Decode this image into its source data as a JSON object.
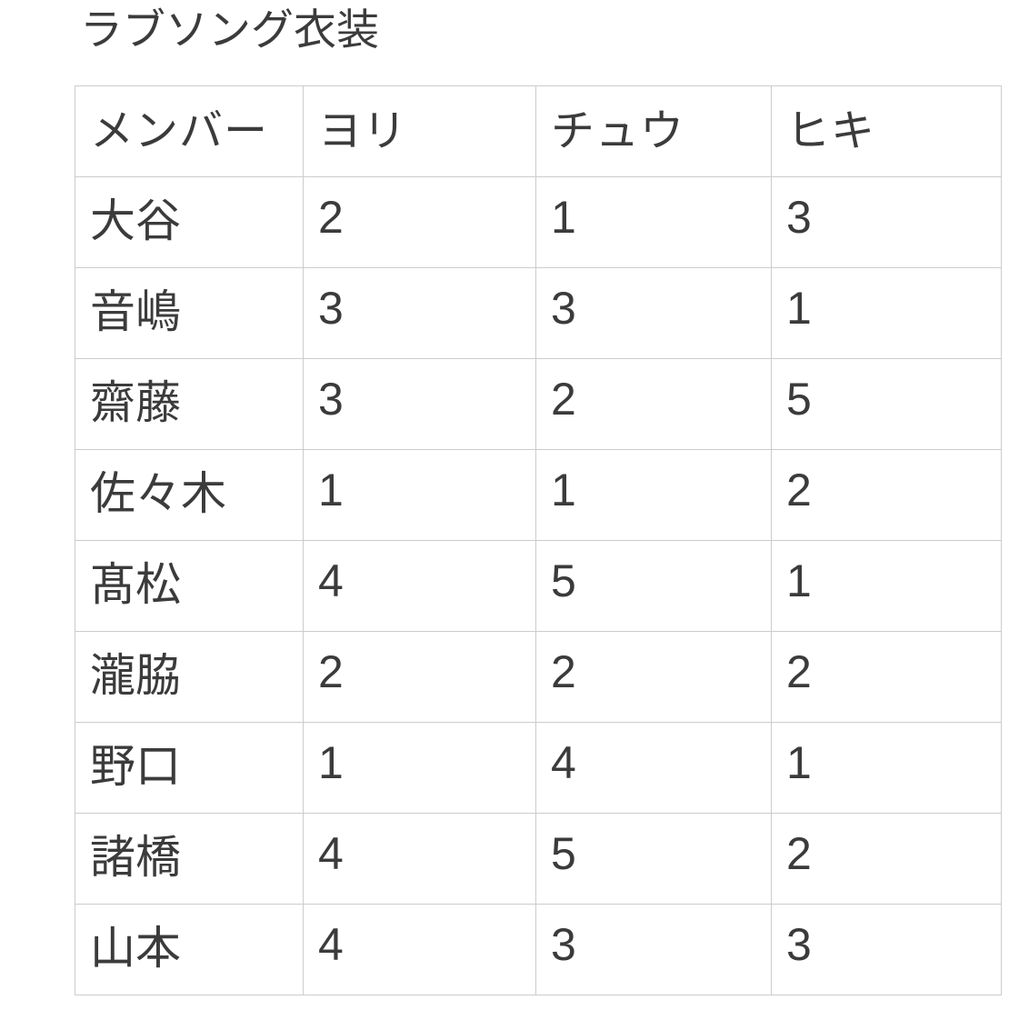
{
  "page": {
    "title": "ラブソング衣装"
  },
  "table": {
    "columns": [
      "メンバー",
      "ヨリ",
      "チュウ",
      "ヒキ"
    ],
    "rows": [
      [
        "大谷",
        "2",
        "1",
        "3"
      ],
      [
        "音嶋",
        "3",
        "3",
        "1"
      ],
      [
        "齋藤",
        "3",
        "2",
        "5"
      ],
      [
        "佐々木",
        "1",
        "1",
        "2"
      ],
      [
        "髙松",
        "4",
        "5",
        "1"
      ],
      [
        "瀧脇",
        "2",
        "2",
        "2"
      ],
      [
        "野口",
        "1",
        "4",
        "1"
      ],
      [
        "諸橋",
        "4",
        "5",
        "2"
      ],
      [
        "山本",
        "4",
        "3",
        "3"
      ]
    ]
  },
  "chart_data": {
    "type": "table",
    "title": "ラブソング衣装",
    "columns": [
      "メンバー",
      "ヨリ",
      "チュウ",
      "ヒキ"
    ],
    "rows": [
      {
        "メンバー": "大谷",
        "ヨリ": 2,
        "チュウ": 1,
        "ヒキ": 3
      },
      {
        "メンバー": "音嶋",
        "ヨリ": 3,
        "チュウ": 3,
        "ヒキ": 1
      },
      {
        "メンバー": "齋藤",
        "ヨリ": 3,
        "チュウ": 2,
        "ヒキ": 5
      },
      {
        "メンバー": "佐々木",
        "ヨリ": 1,
        "チュウ": 1,
        "ヒキ": 2
      },
      {
        "メンバー": "髙松",
        "ヨリ": 4,
        "チュウ": 5,
        "ヒキ": 1
      },
      {
        "メンバー": "瀧脇",
        "ヨリ": 2,
        "チュウ": 2,
        "ヒキ": 2
      },
      {
        "メンバー": "野口",
        "ヨリ": 1,
        "チュウ": 4,
        "ヒキ": 1
      },
      {
        "メンバー": "諸橋",
        "ヨリ": 4,
        "チュウ": 5,
        "ヒキ": 2
      },
      {
        "メンバー": "山本",
        "ヨリ": 4,
        "チュウ": 3,
        "ヒキ": 3
      }
    ]
  },
  "colors": {
    "text": "#3b3b3b",
    "border": "#cccccc",
    "background": "#ffffff"
  }
}
